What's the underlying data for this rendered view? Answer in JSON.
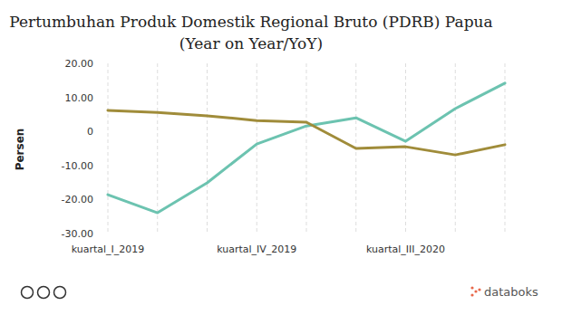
{
  "chart_data": {
    "type": "line",
    "title": [
      "Pertumbuhan Produk Domestik Regional Bruto (PDRB) Papua",
      "(Year on Year/YoY)"
    ],
    "y_label": "Persen",
    "credit": "databoks",
    "categories": [
      "kuartal_I_2019",
      null,
      null,
      "kuartal_IV_2019",
      null,
      null,
      "kuartal_III_2020",
      null,
      null
    ],
    "series": [
      {
        "color": "#6cc3b0",
        "values": [
          -18.6,
          -23.9,
          -15.1,
          -3.7,
          1.6,
          4.0,
          -2.9,
          6.7,
          14.2
        ]
      },
      {
        "color": "#a08c3a",
        "values": [
          6.2,
          5.6,
          4.6,
          3.2,
          2.7,
          -5.0,
          -4.5,
          -6.9,
          -3.9
        ]
      }
    ],
    "ylim": [
      -30,
      20
    ],
    "yticks": [
      {
        "value": -30,
        "label": "-30.00"
      },
      {
        "value": -20,
        "label": "-20.00"
      },
      {
        "value": -10,
        "label": "-10.00"
      },
      0,
      {
        "value": 10,
        "label": "10.00"
      },
      {
        "value": 20,
        "label": "20.00"
      }
    ],
    "grid": true
  }
}
